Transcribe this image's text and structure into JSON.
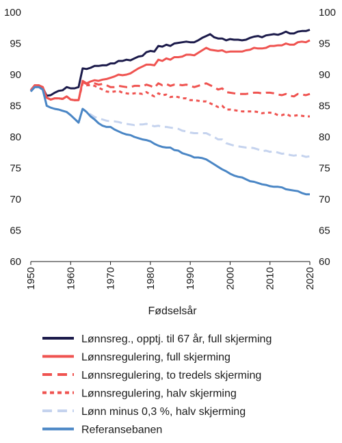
{
  "chart_data": {
    "type": "line",
    "title": "",
    "xlabel": "Fødselsår",
    "ylabel": "",
    "xlim": [
      1950,
      2020
    ],
    "ylim": [
      60,
      100
    ],
    "xticks": [
      1950,
      1960,
      1970,
      1980,
      1990,
      2000,
      2010,
      2020
    ],
    "yticks": [
      60,
      65,
      70,
      75,
      80,
      85,
      90,
      95,
      100
    ],
    "grid": false,
    "legend_position": "bottom",
    "series": [
      {
        "name": "Lønnsreg., opptj. til 67 år, full skjerming",
        "color": "#1b1a4a",
        "style": "solid",
        "x": [
          1950,
          1951,
          1952,
          1953,
          1954,
          1955,
          1956,
          1957,
          1958,
          1959,
          1960,
          1961,
          1962,
          1963,
          1964,
          1965,
          1966,
          1967,
          1968,
          1969,
          1970,
          1971,
          1972,
          1973,
          1974,
          1975,
          1976,
          1977,
          1978,
          1979,
          1980,
          1981,
          1982,
          1983,
          1984,
          1985,
          1986,
          1987,
          1988,
          1989,
          1990,
          1991,
          1992,
          1993,
          1994,
          1995,
          1996,
          1997,
          1998,
          1999,
          2000,
          2001,
          2002,
          2003,
          2004,
          2005,
          2006,
          2007,
          2008,
          2009,
          2010,
          2011,
          2012,
          2013,
          2014,
          2015,
          2016,
          2017,
          2018,
          2019,
          2020
        ],
        "values": [
          87.3,
          88.2,
          88.2,
          87.9,
          86.6,
          86.7,
          87.1,
          87.4,
          87.5,
          88.0,
          87.8,
          87.8,
          88.0,
          91.0,
          90.9,
          91.1,
          91.4,
          91.4,
          91.5,
          91.5,
          91.8,
          91.8,
          92.2,
          92.2,
          92.4,
          92.3,
          92.6,
          92.9,
          93.0,
          93.6,
          93.8,
          93.7,
          94.6,
          94.5,
          94.8,
          94.6,
          95.0,
          95.1,
          95.2,
          95.3,
          95.2,
          95.2,
          95.5,
          95.9,
          96.2,
          96.5,
          96.0,
          95.8,
          95.8,
          95.5,
          95.7,
          95.6,
          95.6,
          95.5,
          95.6,
          95.9,
          96.1,
          96.2,
          96.0,
          96.3,
          96.4,
          96.5,
          96.4,
          96.6,
          96.9,
          96.6,
          96.6,
          96.9,
          97.0,
          97.0,
          97.2
        ]
      },
      {
        "name": "Lønnsregulering, full skjerming",
        "color": "#ef5350",
        "style": "solid",
        "x": [
          1950,
          1951,
          1952,
          1953,
          1954,
          1955,
          1956,
          1957,
          1958,
          1959,
          1960,
          1961,
          1962,
          1963,
          1964,
          1965,
          1966,
          1967,
          1968,
          1969,
          1970,
          1971,
          1972,
          1973,
          1974,
          1975,
          1976,
          1977,
          1978,
          1979,
          1980,
          1981,
          1982,
          1983,
          1984,
          1985,
          1986,
          1987,
          1988,
          1989,
          1990,
          1991,
          1992,
          1993,
          1994,
          1995,
          1996,
          1997,
          1998,
          1999,
          2000,
          2001,
          2002,
          2003,
          2004,
          2005,
          2006,
          2007,
          2008,
          2009,
          2010,
          2011,
          2012,
          2013,
          2014,
          2015,
          2016,
          2017,
          2018,
          2019,
          2020
        ],
        "values": [
          87.5,
          88.3,
          88.3,
          88.0,
          86.3,
          86.0,
          86.2,
          86.2,
          86.1,
          86.5,
          86.0,
          85.9,
          85.9,
          89.0,
          88.6,
          88.9,
          89.1,
          89.0,
          89.2,
          89.3,
          89.5,
          89.7,
          90.0,
          89.9,
          90.0,
          90.2,
          90.6,
          91.0,
          91.3,
          91.6,
          91.6,
          91.5,
          92.4,
          92.2,
          92.6,
          92.4,
          92.8,
          92.8,
          92.9,
          93.2,
          93.2,
          93.1,
          93.5,
          93.9,
          94.3,
          94.0,
          93.9,
          93.8,
          93.9,
          93.6,
          93.7,
          93.7,
          93.7,
          93.7,
          93.9,
          94.0,
          94.3,
          94.2,
          94.2,
          94.3,
          94.6,
          94.6,
          94.7,
          94.7,
          95.0,
          94.8,
          94.8,
          95.2,
          95.3,
          95.2,
          95.5
        ]
      },
      {
        "name": "Lønnsregulering, to tredels skjerming",
        "color": "#ef5350",
        "style": "long-dash",
        "x": [
          1950,
          1951,
          1952,
          1953,
          1954,
          1955,
          1956,
          1957,
          1958,
          1959,
          1960,
          1961,
          1962,
          1963,
          1964,
          1965,
          1966,
          1967,
          1968,
          1969,
          1970,
          1971,
          1972,
          1973,
          1974,
          1975,
          1976,
          1977,
          1978,
          1979,
          1980,
          1981,
          1982,
          1983,
          1984,
          1985,
          1986,
          1987,
          1988,
          1989,
          1990,
          1991,
          1992,
          1993,
          1994,
          1995,
          1996,
          1997,
          1998,
          1999,
          2000,
          2001,
          2002,
          2003,
          2004,
          2005,
          2006,
          2007,
          2008,
          2009,
          2010,
          2011,
          2012,
          2013,
          2014,
          2015,
          2016,
          2017,
          2018,
          2019,
          2020
        ],
        "values": [
          87.5,
          88.3,
          88.3,
          88.0,
          86.3,
          86.0,
          86.2,
          86.2,
          86.1,
          86.5,
          86.0,
          85.9,
          85.9,
          88.8,
          88.5,
          88.6,
          88.6,
          88.4,
          88.5,
          88.3,
          88.0,
          88.0,
          88.2,
          88.1,
          88.0,
          88.0,
          88.2,
          88.2,
          88.1,
          88.4,
          88.2,
          87.9,
          88.6,
          88.3,
          88.5,
          88.2,
          88.4,
          88.4,
          88.3,
          88.4,
          88.2,
          88.0,
          88.2,
          88.4,
          88.6,
          88.3,
          88.0,
          87.6,
          87.8,
          87.2,
          87.1,
          87.0,
          86.9,
          86.9,
          86.9,
          87.0,
          87.1,
          87.1,
          87.0,
          87.1,
          87.1,
          87.0,
          86.8,
          86.7,
          86.9,
          86.6,
          86.5,
          86.9,
          86.8,
          86.7,
          86.9
        ]
      },
      {
        "name": "Lønnsregulering, halv skjerming",
        "color": "#ef5350",
        "style": "short-dash",
        "x": [
          1950,
          1951,
          1952,
          1953,
          1954,
          1955,
          1956,
          1957,
          1958,
          1959,
          1960,
          1961,
          1962,
          1963,
          1964,
          1965,
          1966,
          1967,
          1968,
          1969,
          1970,
          1971,
          1972,
          1973,
          1974,
          1975,
          1976,
          1977,
          1978,
          1979,
          1980,
          1981,
          1982,
          1983,
          1984,
          1985,
          1986,
          1987,
          1988,
          1989,
          1990,
          1991,
          1992,
          1993,
          1994,
          1995,
          1996,
          1997,
          1998,
          1999,
          2000,
          2001,
          2002,
          2003,
          2004,
          2005,
          2006,
          2007,
          2008,
          2009,
          2010,
          2011,
          2012,
          2013,
          2014,
          2015,
          2016,
          2017,
          2018,
          2019,
          2020
        ],
        "values": [
          87.5,
          88.3,
          88.3,
          88.0,
          86.3,
          86.0,
          86.2,
          86.2,
          86.1,
          86.5,
          86.0,
          85.9,
          85.9,
          88.6,
          88.3,
          88.3,
          88.2,
          87.9,
          87.6,
          87.3,
          87.2,
          87.3,
          87.4,
          87.1,
          87.0,
          86.9,
          87.0,
          87.0,
          86.9,
          87.2,
          86.8,
          86.5,
          87.0,
          86.7,
          86.8,
          86.4,
          86.5,
          86.4,
          86.2,
          86.2,
          85.9,
          85.9,
          85.8,
          85.7,
          85.7,
          85.4,
          85.1,
          84.8,
          85.0,
          84.4,
          84.4,
          84.3,
          84.2,
          84.1,
          84.1,
          84.1,
          84.1,
          84.0,
          83.8,
          83.9,
          83.9,
          83.8,
          83.5,
          83.5,
          83.7,
          83.4,
          83.4,
          83.5,
          83.4,
          83.3,
          83.3
        ]
      },
      {
        "name": "Lønn minus 0,3 %, halv skjerming",
        "color": "#c5d3ee",
        "style": "long-dash",
        "x": [
          1950,
          1951,
          1952,
          1953,
          1954,
          1955,
          1956,
          1957,
          1958,
          1959,
          1960,
          1961,
          1962,
          1963,
          1964,
          1965,
          1966,
          1967,
          1968,
          1969,
          1970,
          1971,
          1972,
          1973,
          1974,
          1975,
          1976,
          1977,
          1978,
          1979,
          1980,
          1981,
          1982,
          1983,
          1984,
          1985,
          1986,
          1987,
          1988,
          1989,
          1990,
          1991,
          1992,
          1993,
          1994,
          1995,
          1996,
          1997,
          1998,
          1999,
          2000,
          2001,
          2002,
          2003,
          2004,
          2005,
          2006,
          2007,
          2008,
          2009,
          2010,
          2011,
          2012,
          2013,
          2014,
          2015,
          2016,
          2017,
          2018,
          2019,
          2020
        ],
        "values": [
          87.3,
          88.0,
          88.0,
          87.6,
          85.0,
          84.7,
          84.5,
          84.4,
          84.2,
          84.0,
          83.5,
          82.9,
          82.3,
          84.5,
          84.1,
          83.6,
          83.2,
          83.0,
          82.8,
          82.6,
          82.5,
          82.5,
          82.4,
          82.2,
          82.1,
          82.0,
          81.9,
          82.0,
          82.0,
          82.1,
          81.9,
          81.7,
          81.8,
          81.6,
          81.6,
          81.5,
          81.4,
          81.3,
          81.0,
          80.9,
          80.7,
          80.6,
          80.6,
          80.6,
          80.6,
          80.3,
          80.0,
          79.6,
          79.6,
          79.0,
          78.8,
          78.6,
          78.5,
          78.4,
          78.3,
          78.3,
          78.2,
          78.0,
          77.7,
          77.8,
          77.6,
          77.7,
          77.5,
          77.3,
          77.4,
          77.1,
          77.0,
          77.1,
          77.0,
          76.8,
          76.9
        ]
      },
      {
        "name": "Referansebanen",
        "color": "#4a86c5",
        "style": "solid",
        "x": [
          1950,
          1951,
          1952,
          1953,
          1954,
          1955,
          1956,
          1957,
          1958,
          1959,
          1960,
          1961,
          1962,
          1963,
          1964,
          1965,
          1966,
          1967,
          1968,
          1969,
          1970,
          1971,
          1972,
          1973,
          1974,
          1975,
          1976,
          1977,
          1978,
          1979,
          1980,
          1981,
          1982,
          1983,
          1984,
          1985,
          1986,
          1987,
          1988,
          1989,
          1990,
          1991,
          1992,
          1993,
          1994,
          1995,
          1996,
          1997,
          1998,
          1999,
          2000,
          2001,
          2002,
          2003,
          2004,
          2005,
          2006,
          2007,
          2008,
          2009,
          2010,
          2011,
          2012,
          2013,
          2014,
          2015,
          2016,
          2017,
          2018,
          2019,
          2020
        ],
        "values": [
          87.3,
          88.0,
          88.0,
          87.6,
          85.0,
          84.7,
          84.5,
          84.4,
          84.2,
          84.0,
          83.5,
          82.9,
          82.3,
          84.5,
          84.0,
          83.3,
          82.8,
          82.2,
          81.8,
          81.6,
          81.6,
          81.2,
          80.9,
          80.6,
          80.4,
          80.3,
          80.0,
          79.8,
          79.6,
          79.5,
          79.3,
          78.9,
          78.6,
          78.4,
          78.3,
          78.3,
          77.9,
          77.8,
          77.4,
          77.2,
          77.0,
          76.7,
          76.7,
          76.6,
          76.4,
          76.0,
          75.6,
          75.2,
          74.8,
          74.5,
          74.1,
          73.8,
          73.6,
          73.5,
          73.2,
          72.9,
          72.8,
          72.6,
          72.4,
          72.3,
          72.1,
          72.0,
          72.0,
          71.9,
          71.6,
          71.5,
          71.4,
          71.3,
          71.0,
          70.8,
          70.8
        ]
      }
    ]
  }
}
